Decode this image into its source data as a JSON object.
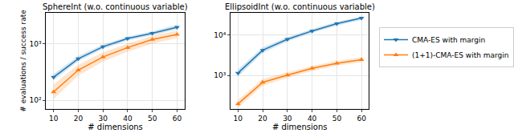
{
  "chart_data": [
    {
      "type": "line",
      "title": "SphereInt (w.o. continuous variable)",
      "x_label": "# dimensions",
      "y_label": "# evaluations / success rate",
      "x": [
        10,
        20,
        30,
        40,
        50,
        60
      ],
      "xlim": [
        7,
        63
      ],
      "xticks": [
        10,
        20,
        30,
        40,
        50,
        60
      ],
      "ylim": [
        70,
        3500
      ],
      "yticks": [
        {
          "value": 100,
          "label": "10²"
        },
        {
          "value": 1000,
          "label": "10³"
        }
      ],
      "log": "y",
      "grid": true,
      "series": [
        {
          "name": "CMA-ES with margin",
          "color": "#1f77b4",
          "marker": "triangle-down",
          "values": [
            255,
            540,
            880,
            1230,
            1520,
            1950
          ],
          "lower": [
            225,
            490,
            810,
            1140,
            1400,
            1780
          ],
          "upper": [
            290,
            600,
            960,
            1330,
            1650,
            2150
          ]
        },
        {
          "name": "(1+1)-CMA-ES with margin",
          "color": "#ff7f0e",
          "marker": "triangle-up",
          "values": [
            140,
            340,
            580,
            850,
            1180,
            1450
          ],
          "lower": [
            105,
            270,
            480,
            720,
            1000,
            1250
          ],
          "upper": [
            190,
            420,
            700,
            1000,
            1380,
            1700
          ]
        }
      ]
    },
    {
      "type": "line",
      "title": "EllipsoidInt (w.o. continuous variable)",
      "x_label": "# dimensions",
      "x": [
        10,
        20,
        30,
        40,
        50,
        60
      ],
      "xlim": [
        7,
        63
      ],
      "xticks": [
        10,
        20,
        30,
        40,
        50,
        60
      ],
      "ylim": [
        150,
        35000
      ],
      "yticks": [
        {
          "value": 1000,
          "label": "10³"
        },
        {
          "value": 10000,
          "label": "10⁴"
        }
      ],
      "log": "y",
      "grid": true,
      "legend": "right",
      "series": [
        {
          "name": "CMA-ES with margin",
          "color": "#1f77b4",
          "marker": "triangle-down",
          "values": [
            1150,
            4200,
            7800,
            12500,
            19000,
            26000
          ],
          "lower": [
            950,
            3600,
            6900,
            11200,
            17000,
            23500
          ],
          "upper": [
            1400,
            4900,
            8800,
            14000,
            21000,
            28500
          ]
        },
        {
          "name": "(1+1)-CMA-ES with margin",
          "color": "#ff7f0e",
          "marker": "triangle-up",
          "values": [
            200,
            680,
            1020,
            1500,
            2000,
            2450
          ],
          "lower": [
            160,
            560,
            870,
            1300,
            1750,
            2150
          ],
          "upper": [
            250,
            820,
            1200,
            1720,
            2280,
            2800
          ]
        }
      ]
    }
  ]
}
